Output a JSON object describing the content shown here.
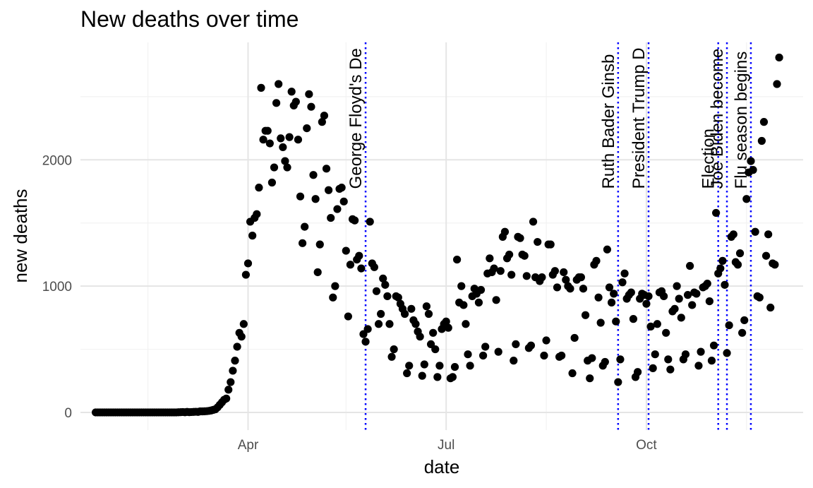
{
  "chart_data": {
    "type": "scatter",
    "title": "New deaths over time",
    "xlabel": "date",
    "ylabel": "new deaths",
    "x_type": "date",
    "xlim": [
      "2020-01-15",
      "2020-12-12"
    ],
    "ylim": [
      -140,
      2930
    ],
    "x_ticks": [
      {
        "label": "Apr",
        "date": "2020-04-01"
      },
      {
        "label": "Jul",
        "date": "2020-07-01"
      },
      {
        "label": "Oct",
        "date": "2020-10-01"
      }
    ],
    "x_minor_ticks": [
      "2020-02-15",
      "2020-05-16",
      "2020-08-16",
      "2020-11-16"
    ],
    "y_ticks": [
      0,
      1000,
      2000
    ],
    "y_minor_ticks": [
      500,
      1500,
      2500
    ],
    "grid": true,
    "legend": "none",
    "point_color": "#000000",
    "event_line_color": "#0000ff",
    "events": [
      {
        "date": "2020-05-25",
        "label": "George Floyd's De"
      },
      {
        "date": "2020-09-18",
        "label": "Ruth Bader Ginsb"
      },
      {
        "date": "2020-10-02",
        "label": "President Trump D"
      },
      {
        "date": "2020-11-03",
        "label": "Election"
      },
      {
        "date": "2020-11-07",
        "label": "Joe Biden become"
      },
      {
        "date": "2020-11-18",
        "label": "Flu season begins"
      }
    ],
    "points": [
      [
        "2020-01-22",
        0
      ],
      [
        "2020-01-23",
        0
      ],
      [
        "2020-01-24",
        0
      ],
      [
        "2020-01-25",
        0
      ],
      [
        "2020-01-26",
        0
      ],
      [
        "2020-01-27",
        0
      ],
      [
        "2020-01-28",
        0
      ],
      [
        "2020-01-29",
        0
      ],
      [
        "2020-01-30",
        0
      ],
      [
        "2020-01-31",
        0
      ],
      [
        "2020-02-01",
        0
      ],
      [
        "2020-02-02",
        0
      ],
      [
        "2020-02-03",
        0
      ],
      [
        "2020-02-04",
        0
      ],
      [
        "2020-02-05",
        0
      ],
      [
        "2020-02-06",
        0
      ],
      [
        "2020-02-07",
        0
      ],
      [
        "2020-02-08",
        0
      ],
      [
        "2020-02-09",
        0
      ],
      [
        "2020-02-10",
        0
      ],
      [
        "2020-02-11",
        0
      ],
      [
        "2020-02-12",
        0
      ],
      [
        "2020-02-13",
        0
      ],
      [
        "2020-02-14",
        0
      ],
      [
        "2020-02-15",
        0
      ],
      [
        "2020-02-16",
        0
      ],
      [
        "2020-02-17",
        0
      ],
      [
        "2020-02-18",
        0
      ],
      [
        "2020-02-19",
        0
      ],
      [
        "2020-02-20",
        0
      ],
      [
        "2020-02-21",
        0
      ],
      [
        "2020-02-22",
        0
      ],
      [
        "2020-02-23",
        0
      ],
      [
        "2020-02-24",
        0
      ],
      [
        "2020-02-25",
        0
      ],
      [
        "2020-02-26",
        0
      ],
      [
        "2020-02-27",
        0
      ],
      [
        "2020-02-28",
        0
      ],
      [
        "2020-02-29",
        1
      ],
      [
        "2020-03-01",
        2
      ],
      [
        "2020-03-02",
        3
      ],
      [
        "2020-03-03",
        1
      ],
      [
        "2020-03-04",
        4
      ],
      [
        "2020-03-05",
        2
      ],
      [
        "2020-03-06",
        3
      ],
      [
        "2020-03-07",
        4
      ],
      [
        "2020-03-08",
        5
      ],
      [
        "2020-03-09",
        4
      ],
      [
        "2020-03-10",
        8
      ],
      [
        "2020-03-11",
        8
      ],
      [
        "2020-03-12",
        9
      ],
      [
        "2020-03-13",
        10
      ],
      [
        "2020-03-14",
        12
      ],
      [
        "2020-03-15",
        15
      ],
      [
        "2020-03-16",
        20
      ],
      [
        "2020-03-17",
        25
      ],
      [
        "2020-03-18",
        40
      ],
      [
        "2020-03-19",
        60
      ],
      [
        "2020-03-20",
        80
      ],
      [
        "2020-03-21",
        100
      ],
      [
        "2020-03-22",
        110
      ],
      [
        "2020-03-23",
        180
      ],
      [
        "2020-03-24",
        240
      ],
      [
        "2020-03-25",
        330
      ],
      [
        "2020-03-26",
        410
      ],
      [
        "2020-03-27",
        520
      ],
      [
        "2020-03-28",
        630
      ],
      [
        "2020-03-29",
        600
      ],
      [
        "2020-03-30",
        700
      ],
      [
        "2020-03-31",
        1090
      ],
      [
        "2020-04-01",
        1180
      ],
      [
        "2020-04-02",
        1510
      ],
      [
        "2020-04-03",
        1400
      ],
      [
        "2020-04-04",
        1540
      ],
      [
        "2020-04-05",
        1570
      ],
      [
        "2020-04-06",
        1780
      ],
      [
        "2020-04-07",
        2570
      ],
      [
        "2020-04-08",
        2160
      ],
      [
        "2020-04-09",
        2230
      ],
      [
        "2020-04-10",
        2230
      ],
      [
        "2020-04-11",
        2130
      ],
      [
        "2020-04-12",
        1820
      ],
      [
        "2020-04-13",
        1940
      ],
      [
        "2020-04-14",
        2450
      ],
      [
        "2020-04-15",
        2600
      ],
      [
        "2020-04-16",
        2170
      ],
      [
        "2020-04-17",
        2100
      ],
      [
        "2020-04-18",
        1990
      ],
      [
        "2020-04-19",
        1940
      ],
      [
        "2020-04-20",
        2180
      ],
      [
        "2020-04-21",
        2540
      ],
      [
        "2020-04-22",
        2430
      ],
      [
        "2020-04-23",
        2460
      ],
      [
        "2020-04-24",
        2160
      ],
      [
        "2020-04-25",
        1710
      ],
      [
        "2020-04-26",
        1340
      ],
      [
        "2020-04-27",
        1470
      ],
      [
        "2020-04-28",
        2250
      ],
      [
        "2020-04-29",
        2520
      ],
      [
        "2020-04-30",
        2420
      ],
      [
        "2020-05-01",
        1880
      ],
      [
        "2020-05-02",
        1690
      ],
      [
        "2020-05-03",
        1110
      ],
      [
        "2020-05-04",
        1330
      ],
      [
        "2020-05-05",
        2300
      ],
      [
        "2020-05-06",
        2350
      ],
      [
        "2020-05-07",
        1930
      ],
      [
        "2020-05-08",
        1760
      ],
      [
        "2020-05-09",
        1540
      ],
      [
        "2020-05-10",
        910
      ],
      [
        "2020-05-11",
        1000
      ],
      [
        "2020-05-12",
        1610
      ],
      [
        "2020-05-13",
        1770
      ],
      [
        "2020-05-14",
        1780
      ],
      [
        "2020-05-15",
        1670
      ],
      [
        "2020-05-16",
        1280
      ],
      [
        "2020-05-17",
        760
      ],
      [
        "2020-05-18",
        1170
      ],
      [
        "2020-05-19",
        1530
      ],
      [
        "2020-05-20",
        1520
      ],
      [
        "2020-05-21",
        1210
      ],
      [
        "2020-05-22",
        1240
      ],
      [
        "2020-05-23",
        1140
      ],
      [
        "2020-05-24",
        620
      ],
      [
        "2020-05-25",
        560
      ],
      [
        "2020-05-26",
        660
      ],
      [
        "2020-05-27",
        1510
      ],
      [
        "2020-05-28",
        1180
      ],
      [
        "2020-05-29",
        1150
      ],
      [
        "2020-05-30",
        960
      ],
      [
        "2020-05-31",
        700
      ],
      [
        "2020-06-01",
        780
      ],
      [
        "2020-06-02",
        1060
      ],
      [
        "2020-06-03",
        1010
      ],
      [
        "2020-06-04",
        920
      ],
      [
        "2020-06-05",
        700
      ],
      [
        "2020-06-06",
        440
      ],
      [
        "2020-06-07",
        500
      ],
      [
        "2020-06-08",
        920
      ],
      [
        "2020-06-09",
        910
      ],
      [
        "2020-06-10",
        860
      ],
      [
        "2020-06-11",
        820
      ],
      [
        "2020-06-12",
        780
      ],
      [
        "2020-06-13",
        310
      ],
      [
        "2020-06-14",
        370
      ],
      [
        "2020-06-15",
        820
      ],
      [
        "2020-06-16",
        730
      ],
      [
        "2020-06-17",
        700
      ],
      [
        "2020-06-18",
        640
      ],
      [
        "2020-06-19",
        600
      ],
      [
        "2020-06-20",
        290
      ],
      [
        "2020-06-21",
        380
      ],
      [
        "2020-06-22",
        840
      ],
      [
        "2020-06-23",
        780
      ],
      [
        "2020-06-24",
        540
      ],
      [
        "2020-06-25",
        630
      ],
      [
        "2020-06-26",
        500
      ],
      [
        "2020-06-27",
        280
      ],
      [
        "2020-06-28",
        370
      ],
      [
        "2020-06-29",
        660
      ],
      [
        "2020-06-30",
        700
      ],
      [
        "2020-07-01",
        720
      ],
      [
        "2020-07-02",
        670
      ],
      [
        "2020-07-03",
        270
      ],
      [
        "2020-07-04",
        280
      ],
      [
        "2020-07-05",
        360
      ],
      [
        "2020-07-06",
        1210
      ],
      [
        "2020-07-07",
        870
      ],
      [
        "2020-07-08",
        1000
      ],
      [
        "2020-07-09",
        850
      ],
      [
        "2020-07-10",
        700
      ],
      [
        "2020-07-11",
        460
      ],
      [
        "2020-07-12",
        370
      ],
      [
        "2020-07-13",
        920
      ],
      [
        "2020-07-14",
        980
      ],
      [
        "2020-07-15",
        940
      ],
      [
        "2020-07-16",
        870
      ],
      [
        "2020-07-17",
        970
      ],
      [
        "2020-07-18",
        450
      ],
      [
        "2020-07-19",
        520
      ],
      [
        "2020-07-20",
        1100
      ],
      [
        "2020-07-21",
        1220
      ],
      [
        "2020-07-22",
        1110
      ],
      [
        "2020-07-23",
        1140
      ],
      [
        "2020-07-24",
        890
      ],
      [
        "2020-07-25",
        480
      ],
      [
        "2020-07-26",
        1120
      ],
      [
        "2020-07-27",
        1390
      ],
      [
        "2020-07-28",
        1430
      ],
      [
        "2020-07-29",
        1220
      ],
      [
        "2020-07-30",
        1250
      ],
      [
        "2020-07-31",
        1090
      ],
      [
        "2020-08-01",
        410
      ],
      [
        "2020-08-02",
        540
      ],
      [
        "2020-08-03",
        1390
      ],
      [
        "2020-08-04",
        1380
      ],
      [
        "2020-08-05",
        1250
      ],
      [
        "2020-08-06",
        1240
      ],
      [
        "2020-08-07",
        1080
      ],
      [
        "2020-08-08",
        510
      ],
      [
        "2020-08-09",
        530
      ],
      [
        "2020-08-10",
        1510
      ],
      [
        "2020-08-11",
        1070
      ],
      [
        "2020-08-12",
        1350
      ],
      [
        "2020-08-13",
        1040
      ],
      [
        "2020-08-14",
        1070
      ],
      [
        "2020-08-15",
        450
      ],
      [
        "2020-08-16",
        570
      ],
      [
        "2020-08-17",
        1330
      ],
      [
        "2020-08-18",
        1330
      ],
      [
        "2020-08-19",
        1090
      ],
      [
        "2020-08-20",
        1120
      ],
      [
        "2020-08-21",
        990
      ],
      [
        "2020-08-22",
        440
      ],
      [
        "2020-08-23",
        450
      ],
      [
        "2020-08-24",
        1110
      ],
      [
        "2020-08-25",
        1050
      ],
      [
        "2020-08-26",
        1000
      ],
      [
        "2020-08-27",
        980
      ],
      [
        "2020-08-28",
        310
      ],
      [
        "2020-08-29",
        590
      ],
      [
        "2020-08-30",
        1050
      ],
      [
        "2020-08-31",
        1070
      ],
      [
        "2020-09-01",
        1070
      ],
      [
        "2020-09-02",
        980
      ],
      [
        "2020-09-03",
        770
      ],
      [
        "2020-09-04",
        410
      ],
      [
        "2020-09-05",
        270
      ],
      [
        "2020-09-06",
        430
      ],
      [
        "2020-09-07",
        1170
      ],
      [
        "2020-09-08",
        1200
      ],
      [
        "2020-09-09",
        910
      ],
      [
        "2020-09-10",
        710
      ],
      [
        "2020-09-11",
        370
      ],
      [
        "2020-09-12",
        400
      ],
      [
        "2020-09-13",
        1290
      ],
      [
        "2020-09-14",
        990
      ],
      [
        "2020-09-15",
        870
      ],
      [
        "2020-09-16",
        940
      ],
      [
        "2020-09-17",
        720
      ],
      [
        "2020-09-18",
        240
      ],
      [
        "2020-09-19",
        420
      ],
      [
        "2020-09-20",
        1030
      ],
      [
        "2020-09-21",
        1100
      ],
      [
        "2020-09-22",
        900
      ],
      [
        "2020-09-23",
        930
      ],
      [
        "2020-09-24",
        950
      ],
      [
        "2020-09-25",
        740
      ],
      [
        "2020-09-26",
        280
      ],
      [
        "2020-09-27",
        320
      ],
      [
        "2020-09-28",
        900
      ],
      [
        "2020-09-29",
        940
      ],
      [
        "2020-09-30",
        930
      ],
      [
        "2020-10-01",
        860
      ],
      [
        "2020-10-02",
        920
      ],
      [
        "2020-10-03",
        680
      ],
      [
        "2020-10-04",
        350
      ],
      [
        "2020-10-05",
        460
      ],
      [
        "2020-10-06",
        700
      ],
      [
        "2020-10-07",
        950
      ],
      [
        "2020-10-08",
        960
      ],
      [
        "2020-10-09",
        920
      ],
      [
        "2020-10-10",
        630
      ],
      [
        "2020-10-11",
        420
      ],
      [
        "2020-10-12",
        340
      ],
      [
        "2020-10-13",
        800
      ],
      [
        "2020-10-14",
        820
      ],
      [
        "2020-10-15",
        1000
      ],
      [
        "2020-10-16",
        900
      ],
      [
        "2020-10-17",
        750
      ],
      [
        "2020-10-18",
        420
      ],
      [
        "2020-10-19",
        460
      ],
      [
        "2020-10-20",
        930
      ],
      [
        "2020-10-21",
        1160
      ],
      [
        "2020-10-22",
        850
      ],
      [
        "2020-10-23",
        950
      ],
      [
        "2020-10-24",
        940
      ],
      [
        "2020-10-25",
        370
      ],
      [
        "2020-10-26",
        480
      ],
      [
        "2020-10-27",
        990
      ],
      [
        "2020-10-28",
        1000
      ],
      [
        "2020-10-29",
        1020
      ],
      [
        "2020-10-30",
        880
      ],
      [
        "2020-10-31",
        410
      ],
      [
        "2020-11-01",
        530
      ],
      [
        "2020-11-02",
        1580
      ],
      [
        "2020-11-03",
        1100
      ],
      [
        "2020-11-04",
        1140
      ],
      [
        "2020-11-05",
        1200
      ],
      [
        "2020-11-06",
        1010
      ],
      [
        "2020-11-07",
        470
      ],
      [
        "2020-11-08",
        690
      ],
      [
        "2020-11-09",
        1390
      ],
      [
        "2020-11-10",
        1410
      ],
      [
        "2020-11-11",
        1190
      ],
      [
        "2020-11-12",
        1170
      ],
      [
        "2020-11-13",
        1260
      ],
      [
        "2020-11-14",
        630
      ],
      [
        "2020-11-15",
        730
      ],
      [
        "2020-11-16",
        1690
      ],
      [
        "2020-11-17",
        1900
      ],
      [
        "2020-11-18",
        1990
      ],
      [
        "2020-11-19",
        1920
      ],
      [
        "2020-11-20",
        1430
      ],
      [
        "2020-11-21",
        920
      ],
      [
        "2020-11-22",
        910
      ],
      [
        "2020-11-23",
        2150
      ],
      [
        "2020-11-24",
        2300
      ],
      [
        "2020-11-25",
        1240
      ],
      [
        "2020-11-26",
        1410
      ],
      [
        "2020-11-27",
        830
      ],
      [
        "2020-11-28",
        1180
      ],
      [
        "2020-11-29",
        1170
      ],
      [
        "2020-11-30",
        2600
      ],
      [
        "2020-12-01",
        2810
      ]
    ]
  }
}
